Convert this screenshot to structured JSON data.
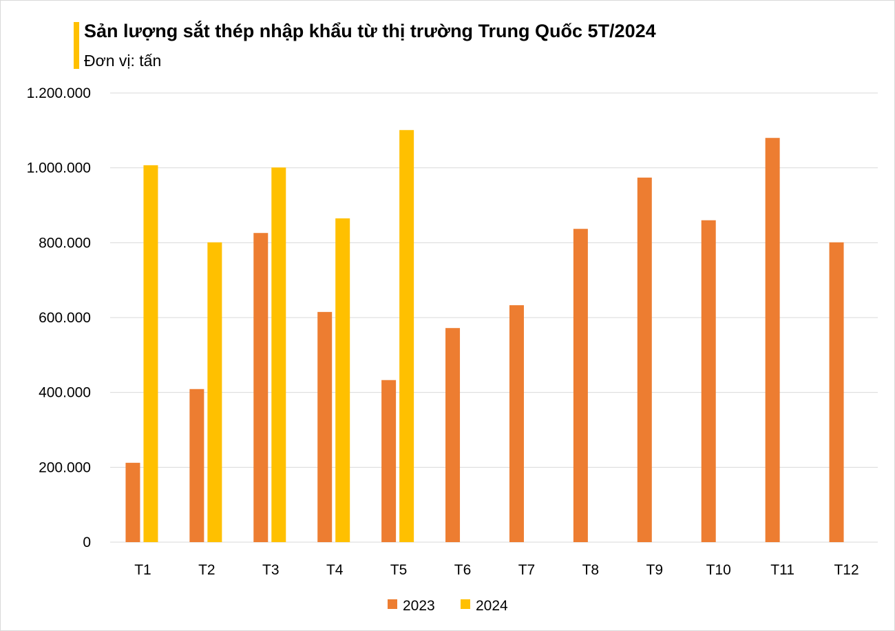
{
  "title": "Sản lượng sắt thép nhập khẩu từ thị trường Trung Quốc 5T/2024",
  "subtitle": "Đơn vị: tấn",
  "colors": {
    "accent": "#FFC000",
    "2023": "#ED7D31",
    "2024": "#FFC000",
    "grid": "#D9D9D9"
  },
  "chart_data": {
    "type": "bar",
    "title": "Sản lượng sắt thép nhập khẩu từ thị trường Trung Quốc 5T/2024",
    "subtitle": "Đơn vị: tấn",
    "xlabel": "",
    "ylabel": "",
    "ylim": [
      0,
      1200000
    ],
    "yticks": [
      0,
      200000,
      400000,
      600000,
      800000,
      1000000,
      1200000
    ],
    "ytick_labels": [
      "0",
      "200.000",
      "400.000",
      "600.000",
      "800.000",
      "1.000.000",
      "1.200.000"
    ],
    "grid": true,
    "legend": "bottom",
    "categories": [
      "T1",
      "T2",
      "T3",
      "T4",
      "T5",
      "T6",
      "T7",
      "T8",
      "T9",
      "T10",
      "T11",
      "T12"
    ],
    "series": [
      {
        "name": "2023",
        "color": "#ED7D31",
        "values": [
          212000,
          409000,
          826000,
          615000,
          433000,
          572000,
          633000,
          837000,
          974000,
          860000,
          1080000,
          801000
        ]
      },
      {
        "name": "2024",
        "color": "#FFC000",
        "values": [
          1007000,
          801000,
          1001000,
          865000,
          1101000,
          null,
          null,
          null,
          null,
          null,
          null,
          null
        ]
      }
    ]
  }
}
